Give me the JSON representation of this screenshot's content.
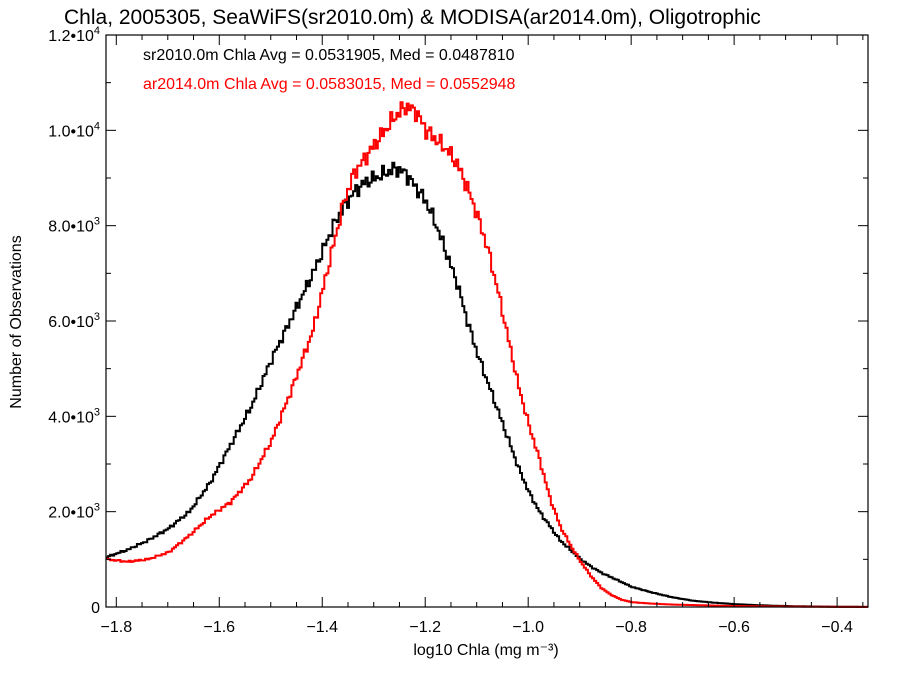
{
  "chart_data": {
    "type": "line",
    "title": "Chla, 2005305, SeaWiFS(sr2010.0m) & MODISA(ar2014.0m), Oligotrophic",
    "xlabel": "log10 Chla (mg m⁻³)",
    "ylabel": "Number of Observations",
    "xlim": [
      -1.82,
      -0.34
    ],
    "ylim": [
      0,
      12000
    ],
    "x_ticks": [
      -1.8,
      -1.6,
      -1.4,
      -1.2,
      -1.0,
      -0.8,
      -0.6,
      -0.4
    ],
    "x_tick_labels": [
      "−1.8",
      "−1.6",
      "−1.4",
      "−1.2",
      "−1.0",
      "−0.8",
      "−0.6",
      "−0.4"
    ],
    "y_ticks": [
      0,
      2000,
      4000,
      6000,
      8000,
      10000,
      12000
    ],
    "y_tick_labels": [
      {
        "mantissa": "0",
        "exp": ""
      },
      {
        "mantissa": "2.0•10",
        "exp": "3"
      },
      {
        "mantissa": "4.0•10",
        "exp": "3"
      },
      {
        "mantissa": "6.0•10",
        "exp": "3"
      },
      {
        "mantissa": "8.0•10",
        "exp": "3"
      },
      {
        "mantissa": "1.0•10",
        "exp": "4"
      },
      {
        "mantissa": "1.2•10",
        "exp": "4"
      }
    ],
    "legend": [
      {
        "text": "sr2010.0m Chla Avg = 0.0531905, Med = 0.0487810",
        "color": "#000000"
      },
      {
        "text": "ar2014.0m Chla Avg = 0.0583015, Med = 0.0552948",
        "color": "#ff0000"
      }
    ],
    "legend_placement": "top-left",
    "step_style": true,
    "series": [
      {
        "color": "#000000",
        "x": [
          -1.82,
          -1.78,
          -1.74,
          -1.7,
          -1.66,
          -1.62,
          -1.58,
          -1.54,
          -1.5,
          -1.46,
          -1.42,
          -1.4,
          -1.38,
          -1.36,
          -1.34,
          -1.32,
          -1.3,
          -1.28,
          -1.26,
          -1.24,
          -1.22,
          -1.2,
          -1.18,
          -1.16,
          -1.14,
          -1.12,
          -1.1,
          -1.08,
          -1.06,
          -1.04,
          -1.02,
          -1.0,
          -0.98,
          -0.96,
          -0.94,
          -0.92,
          -0.9,
          -0.88,
          -0.86,
          -0.84,
          -0.82,
          -0.8,
          -0.76,
          -0.72,
          -0.68,
          -0.64,
          -0.6,
          -0.56,
          -0.52,
          -0.48,
          -0.44,
          -0.4,
          -0.36,
          -0.34
        ],
        "y": [
          1050,
          1200,
          1400,
          1650,
          2000,
          2600,
          3400,
          4200,
          5200,
          6100,
          7000,
          7500,
          8000,
          8400,
          8700,
          8900,
          9000,
          9100,
          9200,
          9100,
          8800,
          8500,
          8000,
          7400,
          6800,
          6000,
          5300,
          4700,
          4100,
          3500,
          2900,
          2400,
          2000,
          1700,
          1400,
          1200,
          1000,
          850,
          720,
          620,
          520,
          420,
          300,
          200,
          130,
          90,
          60,
          40,
          25,
          15,
          10,
          5,
          3,
          2
        ]
      },
      {
        "color": "#ff0000",
        "x": [
          -1.82,
          -1.78,
          -1.74,
          -1.7,
          -1.66,
          -1.62,
          -1.58,
          -1.54,
          -1.5,
          -1.46,
          -1.44,
          -1.42,
          -1.4,
          -1.38,
          -1.36,
          -1.34,
          -1.32,
          -1.3,
          -1.28,
          -1.26,
          -1.24,
          -1.22,
          -1.2,
          -1.18,
          -1.16,
          -1.14,
          -1.12,
          -1.1,
          -1.08,
          -1.06,
          -1.04,
          -1.02,
          -1.0,
          -0.98,
          -0.96,
          -0.94,
          -0.92,
          -0.9,
          -0.88,
          -0.86,
          -0.84,
          -0.82,
          -0.8,
          -0.76,
          -0.72,
          -0.68,
          -0.64,
          -0.6,
          -0.56,
          -0.52,
          -0.48,
          -0.44,
          -0.4,
          -0.36,
          -0.34
        ],
        "y": [
          1000,
          950,
          1000,
          1150,
          1500,
          1900,
          2200,
          2700,
          3500,
          4600,
          5200,
          5800,
          6700,
          7600,
          8500,
          9100,
          9400,
          9700,
          10000,
          10300,
          10500,
          10400,
          10000,
          9800,
          9600,
          9300,
          8800,
          8200,
          7500,
          6600,
          5600,
          4600,
          3800,
          3100,
          2300,
          1700,
          1300,
          950,
          650,
          400,
          250,
          150,
          100,
          70,
          50,
          40,
          30,
          20,
          15,
          10,
          8,
          5,
          3,
          2,
          1
        ]
      }
    ]
  }
}
